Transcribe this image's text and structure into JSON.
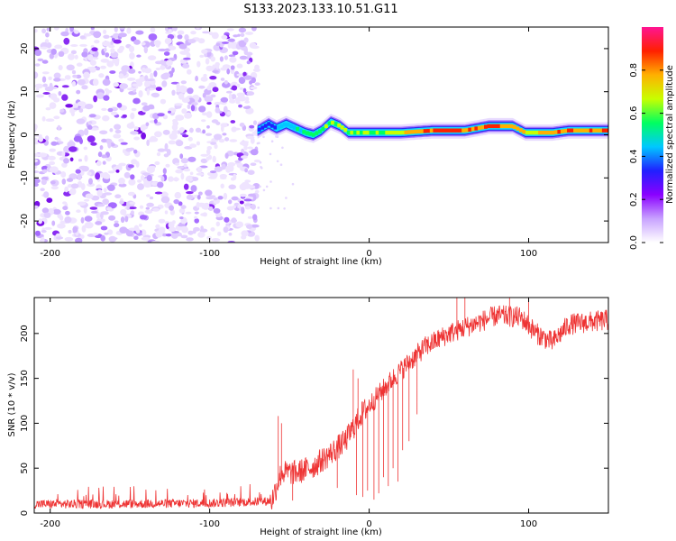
{
  "title": "S133.2023.133.10.51.G11",
  "chart_data": [
    {
      "type": "heatmap",
      "name": "spectrogram",
      "xlabel": "Height of straight line (km)",
      "ylabel": "Frequency (Hz)",
      "xlim": [
        -210,
        150
      ],
      "ylim": [
        -25,
        25
      ],
      "xticks": [
        -200,
        -100,
        0,
        100
      ],
      "yticks": [
        -20,
        -10,
        0,
        10,
        20
      ],
      "noise_region_x": [
        -210,
        -70
      ],
      "signal_start_x": -70,
      "signal_track": [
        {
          "x": -70,
          "f": 1.0
        },
        {
          "x": -63,
          "f": 2.5
        },
        {
          "x": -58,
          "f": 1.5
        },
        {
          "x": -52,
          "f": 2.5
        },
        {
          "x": -46,
          "f": 1.5
        },
        {
          "x": -40,
          "f": 0.5
        },
        {
          "x": -35,
          "f": 0.0
        },
        {
          "x": -30,
          "f": 1.0
        },
        {
          "x": -24,
          "f": 3.0
        },
        {
          "x": -18,
          "f": 2.0
        },
        {
          "x": -13,
          "f": 0.5
        },
        {
          "x": -5,
          "f": 0.5
        },
        {
          "x": 5,
          "f": 0.5
        },
        {
          "x": 20,
          "f": 0.5
        },
        {
          "x": 40,
          "f": 1.0
        },
        {
          "x": 60,
          "f": 1.0
        },
        {
          "x": 75,
          "f": 2.0
        },
        {
          "x": 90,
          "f": 2.0
        },
        {
          "x": 98,
          "f": 0.5
        },
        {
          "x": 115,
          "f": 0.5
        },
        {
          "x": 125,
          "f": 1.0
        },
        {
          "x": 150,
          "f": 1.0
        }
      ],
      "signal_strength": [
        {
          "x": -70,
          "a": 0.4
        },
        {
          "x": -40,
          "a": 0.6
        },
        {
          "x": -20,
          "a": 0.7
        },
        {
          "x": 0,
          "a": 0.65
        },
        {
          "x": 20,
          "a": 0.8
        },
        {
          "x": 40,
          "a": 0.95
        },
        {
          "x": 60,
          "a": 0.9
        },
        {
          "x": 80,
          "a": 0.95
        },
        {
          "x": 100,
          "a": 0.75
        },
        {
          "x": 120,
          "a": 0.9
        },
        {
          "x": 150,
          "a": 0.9
        }
      ]
    },
    {
      "type": "colorbar",
      "name": "amplitude-colorbar",
      "label": "Normalized spectral amplitude",
      "range": [
        0,
        1
      ],
      "ticks": [
        "0.0",
        "0.2",
        "0.4",
        "0.6",
        "0.8"
      ],
      "colors": [
        "#ffffff",
        "#c8a2ff",
        "#8a00ff",
        "#2020ff",
        "#00c8ff",
        "#00ff60",
        "#c8ff00",
        "#ffb000",
        "#ff2000",
        "#ff1493"
      ]
    },
    {
      "type": "line",
      "name": "snr",
      "xlabel": "Height of straight line (km)",
      "ylabel": "SNR (10 * v/v)",
      "xlim": [
        -210,
        150
      ],
      "ylim": [
        0,
        240
      ],
      "xticks": [
        -200,
        -100,
        0,
        100
      ],
      "yticks": [
        0,
        50,
        100,
        150,
        200
      ],
      "color": "#ee3333",
      "envelope": [
        {
          "x": -210,
          "y": 10
        },
        {
          "x": -160,
          "y": 10
        },
        {
          "x": -100,
          "y": 11
        },
        {
          "x": -65,
          "y": 13
        },
        {
          "x": -61,
          "y": 14
        },
        {
          "x": -55,
          "y": 45
        },
        {
          "x": -45,
          "y": 45
        },
        {
          "x": -35,
          "y": 52
        },
        {
          "x": -25,
          "y": 65
        },
        {
          "x": -15,
          "y": 80
        },
        {
          "x": -5,
          "y": 110
        },
        {
          "x": 5,
          "y": 130
        },
        {
          "x": 15,
          "y": 150
        },
        {
          "x": 25,
          "y": 168
        },
        {
          "x": 35,
          "y": 185
        },
        {
          "x": 50,
          "y": 200
        },
        {
          "x": 65,
          "y": 210
        },
        {
          "x": 80,
          "y": 220
        },
        {
          "x": 95,
          "y": 218
        },
        {
          "x": 105,
          "y": 200
        },
        {
          "x": 115,
          "y": 190
        },
        {
          "x": 125,
          "y": 210
        },
        {
          "x": 150,
          "y": 215
        }
      ],
      "dropouts": [
        {
          "x": -8,
          "y": 20
        },
        {
          "x": -4,
          "y": 18
        },
        {
          "x": -1,
          "y": 25
        },
        {
          "x": 3,
          "y": 15
        },
        {
          "x": 6,
          "y": 22
        },
        {
          "x": 9,
          "y": 40
        },
        {
          "x": 12,
          "y": 30
        },
        {
          "x": 15,
          "y": 50
        },
        {
          "x": 18,
          "y": 35
        },
        {
          "x": 21,
          "y": 70
        },
        {
          "x": 25,
          "y": 80
        },
        {
          "x": 30,
          "y": 110
        },
        {
          "x": -20,
          "y": 28
        },
        {
          "x": -48,
          "y": 14
        }
      ],
      "spikes": [
        {
          "x": -57,
          "y": 108
        },
        {
          "x": -55,
          "y": 100
        },
        {
          "x": -10,
          "y": 160
        },
        {
          "x": -7,
          "y": 150
        },
        {
          "x": 55,
          "y": 240
        },
        {
          "x": 60,
          "y": 240
        },
        {
          "x": 88,
          "y": 240
        },
        {
          "x": 100,
          "y": 240
        }
      ]
    }
  ]
}
